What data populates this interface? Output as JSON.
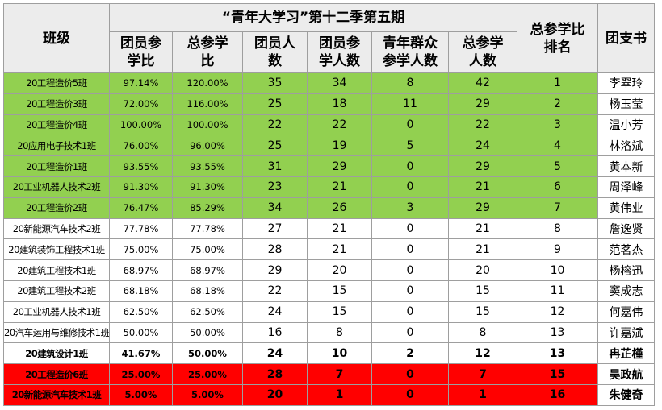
{
  "table": {
    "corner": "班级",
    "title": "“青年大学习”第十二季第五期",
    "subheaders": [
      "团员参学比",
      "总参学比",
      "团员人数",
      "团员参学人数",
      "青年群众参学人数",
      "总参学人数"
    ],
    "rank_header": "总参学比排名",
    "secretary_header": "团支书",
    "rows": [
      {
        "cells": [
          "20工程造价5班",
          "97.14%",
          "120.00%",
          "35",
          "34",
          "8",
          "42",
          "1",
          "李翠玲"
        ],
        "fill": "#92d050"
      },
      {
        "cells": [
          "20工程造价3班",
          "72.00%",
          "116.00%",
          "25",
          "18",
          "11",
          "29",
          "2",
          "杨玉莹"
        ],
        "fill": "#92d050"
      },
      {
        "cells": [
          "20工程造价4班",
          "100.00%",
          "100.00%",
          "22",
          "22",
          "0",
          "22",
          "3",
          "温小芳"
        ],
        "fill": "#92d050"
      },
      {
        "cells": [
          "20应用电子技术1班",
          "76.00%",
          "96.00%",
          "25",
          "19",
          "5",
          "24",
          "4",
          "林洛斌"
        ],
        "fill": "#92d050"
      },
      {
        "cells": [
          "20工程造价1班",
          "93.55%",
          "93.55%",
          "31",
          "29",
          "0",
          "29",
          "5",
          "黄本新"
        ],
        "fill": "#92d050"
      },
      {
        "cells": [
          "20工业机器人技术2班",
          "91.30%",
          "91.30%",
          "23",
          "21",
          "0",
          "21",
          "6",
          "周泽峰"
        ],
        "fill": "#92d050"
      },
      {
        "cells": [
          "20工程造价2班",
          "76.47%",
          "85.29%",
          "34",
          "26",
          "3",
          "29",
          "7",
          "黄伟业"
        ],
        "fill": "#92d050"
      },
      {
        "cells": [
          "20新能源汽车技术2班",
          "77.78%",
          "77.78%",
          "27",
          "21",
          "0",
          "21",
          "8",
          "詹逸贤"
        ]
      },
      {
        "cells": [
          "20建筑装饰工程技术1班",
          "75.00%",
          "75.00%",
          "28",
          "21",
          "0",
          "21",
          "9",
          "范茗杰"
        ]
      },
      {
        "cells": [
          "20建筑工程技术1班",
          "68.97%",
          "68.97%",
          "29",
          "20",
          "0",
          "20",
          "10",
          "杨榕迅"
        ]
      },
      {
        "cells": [
          "20建筑工程技术2班",
          "68.18%",
          "68.18%",
          "22",
          "15",
          "0",
          "15",
          "11",
          "窦成志"
        ]
      },
      {
        "cells": [
          "20工业机器人技术1班",
          "62.50%",
          "62.50%",
          "24",
          "15",
          "0",
          "15",
          "12",
          "何嘉伟"
        ]
      },
      {
        "cells": [
          "20汽车运用与维修技术1班",
          "50.00%",
          "50.00%",
          "16",
          "8",
          "0",
          "8",
          "13",
          "许嘉斌"
        ]
      },
      {
        "cells": [
          "20建筑设计1班",
          "41.67%",
          "50.00%",
          "24",
          "10",
          "2",
          "12",
          "13",
          "冉芷槿"
        ],
        "bold": true
      },
      {
        "cells": [
          "20工程造价6班",
          "25.00%",
          "25.00%",
          "28",
          "7",
          "0",
          "7",
          "15",
          "吴政航"
        ],
        "fill": "#ff0000",
        "bold": true
      },
      {
        "cells": [
          "20新能源汽车技术1班",
          "5.00%",
          "5.00%",
          "20",
          "1",
          "0",
          "1",
          "16",
          "朱健奇"
        ],
        "fill": "#ff0000",
        "bold": true
      }
    ]
  }
}
